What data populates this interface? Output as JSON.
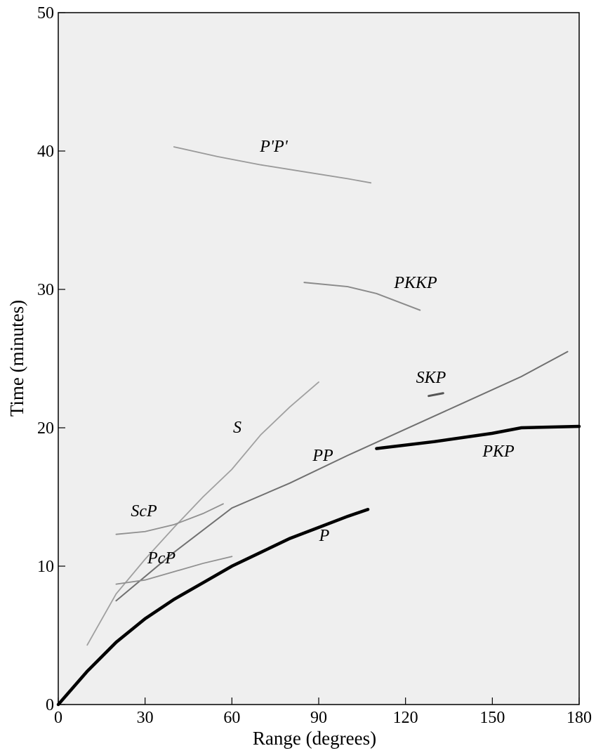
{
  "chart_data": {
    "type": "line",
    "x_label": "Range (degrees)",
    "y_label": "Time (minutes)",
    "xlim": [
      0,
      180
    ],
    "ylim": [
      0,
      50
    ],
    "xticks": [
      0,
      30,
      60,
      90,
      120,
      150,
      180
    ],
    "yticks": [
      0,
      10,
      20,
      30,
      40,
      50
    ],
    "series": [
      {
        "name": "P'P'",
        "color": "#9a9a9a",
        "x": [
          40,
          55,
          70,
          85,
          100,
          108
        ],
        "values": [
          40.3,
          39.6,
          39.0,
          38.5,
          38.0,
          37.7
        ]
      },
      {
        "name": "PKKP",
        "color": "#8a8a8a",
        "x": [
          85,
          100,
          110,
          120,
          125
        ],
        "values": [
          30.5,
          30.2,
          29.7,
          28.9,
          28.5
        ]
      },
      {
        "name": "SKP",
        "color": "#555555",
        "x": [
          128,
          133
        ],
        "values": [
          22.3,
          22.5
        ]
      },
      {
        "name": "S",
        "color": "#a0a0a0",
        "x": [
          10,
          20,
          30,
          40,
          50,
          60,
          70,
          80,
          90
        ],
        "values": [
          4.3,
          8.0,
          10.5,
          12.8,
          15.0,
          17.0,
          19.5,
          21.5,
          23.3
        ]
      },
      {
        "name": "PP",
        "color": "#707070",
        "x": [
          20,
          40,
          60,
          80,
          100,
          120,
          140,
          160,
          176
        ],
        "values": [
          7.5,
          11.0,
          14.2,
          16.0,
          18.0,
          19.9,
          21.8,
          23.7,
          25.5
        ]
      },
      {
        "name": "PKP",
        "color": "#000000",
        "x": [
          110,
          130,
          150,
          160,
          180
        ],
        "values": [
          18.5,
          19.0,
          19.6,
          20.0,
          20.1
        ]
      },
      {
        "name": "ScP",
        "color": "#909090",
        "x": [
          20,
          30,
          40,
          50,
          57
        ],
        "values": [
          12.3,
          12.5,
          13.0,
          13.8,
          14.5
        ]
      },
      {
        "name": "P",
        "color": "#000000",
        "x": [
          0,
          10,
          20,
          30,
          40,
          50,
          60,
          70,
          80,
          90,
          100,
          107
        ],
        "values": [
          0,
          2.4,
          4.5,
          6.2,
          7.6,
          8.8,
          10.0,
          11.0,
          12.0,
          12.8,
          13.6,
          14.1
        ]
      },
      {
        "name": "PcP",
        "color": "#909090",
        "x": [
          20,
          30,
          40,
          50,
          60
        ],
        "values": [
          8.7,
          9.0,
          9.6,
          10.2,
          10.7
        ]
      }
    ]
  }
}
